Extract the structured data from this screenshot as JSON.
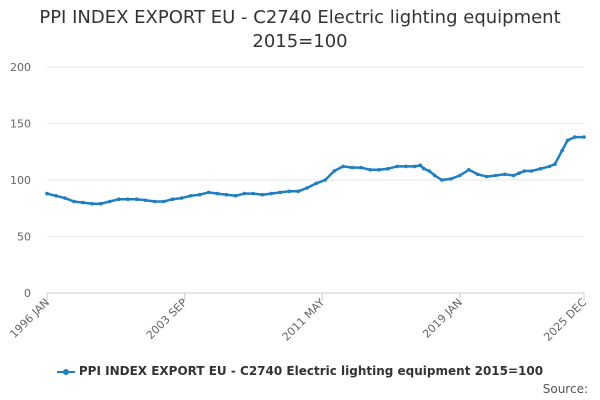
{
  "chart_data": {
    "type": "line",
    "title": "PPI INDEX EXPORT EU - C2740 Electric lighting equipment",
    "subtitle": "2015=100",
    "xlabel": "",
    "ylabel": "",
    "ylim": [
      0,
      200
    ],
    "y_ticks": [
      0,
      50,
      100,
      150,
      200
    ],
    "x_range_years": [
      1996.0,
      2025.92
    ],
    "x_ticks": [
      {
        "label": "1996 JAN",
        "year": 1996.0
      },
      {
        "label": "2003 SEP",
        "year": 2003.67
      },
      {
        "label": "2011 MAY",
        "year": 2011.33
      },
      {
        "label": "2019 JAN",
        "year": 2019.0
      },
      {
        "label": "2025 DEC",
        "year": 2025.92
      }
    ],
    "grid": true,
    "legend": "bottom-center",
    "series": [
      {
        "name": "PPI INDEX EXPORT EU - C2740 Electric lighting equipment 2015=100",
        "color": "#1f7fc1",
        "x": [
          1996.0,
          1996.5,
          1997.0,
          1997.5,
          1998.0,
          1998.5,
          1999.0,
          1999.5,
          2000.0,
          2000.5,
          2001.0,
          2001.5,
          2002.0,
          2002.5,
          2003.0,
          2003.5,
          2004.0,
          2004.5,
          2005.0,
          2005.5,
          2006.0,
          2006.5,
          2007.0,
          2007.5,
          2008.0,
          2008.5,
          2009.0,
          2009.5,
          2010.0,
          2010.5,
          2011.0,
          2011.5,
          2012.0,
          2012.5,
          2013.0,
          2013.5,
          2014.0,
          2014.5,
          2015.0,
          2015.5,
          2016.0,
          2016.5,
          2016.8,
          2017.0,
          2017.3,
          2017.6,
          2018.0,
          2018.5,
          2019.0,
          2019.5,
          2020.0,
          2020.5,
          2021.0,
          2021.5,
          2022.0,
          2022.3,
          2022.6,
          2023.0,
          2023.5,
          2024.0,
          2024.3,
          2024.7,
          2025.0,
          2025.4,
          2025.92
        ],
        "values": [
          88,
          86,
          84,
          81,
          80,
          79,
          79,
          81,
          83,
          83,
          83,
          82,
          81,
          81,
          83,
          84,
          86,
          87,
          89,
          88,
          87,
          86,
          88,
          88,
          87,
          88,
          89,
          90,
          90,
          93,
          97,
          100,
          108,
          112,
          111,
          111,
          109,
          109,
          110,
          112,
          112,
          112,
          113,
          110,
          108,
          104,
          100,
          101,
          104,
          109,
          105,
          103,
          104,
          105,
          104,
          106,
          108,
          108,
          110,
          112,
          114,
          126,
          135,
          138,
          138
        ]
      }
    ]
  },
  "legend": {
    "label": "PPI INDEX EXPORT EU - C2740 Electric lighting equipment 2015=100"
  },
  "credits": "Source:"
}
